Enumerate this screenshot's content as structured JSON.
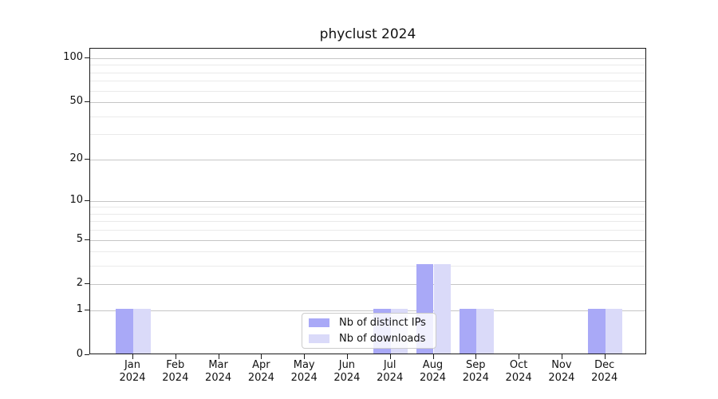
{
  "title": "phyclust 2024",
  "chart_data": {
    "type": "bar",
    "title": "phyclust 2024",
    "categories": [
      "Jan 2024",
      "Feb 2024",
      "Mar 2024",
      "Apr 2024",
      "May 2024",
      "Jun 2024",
      "Jul 2024",
      "Aug 2024",
      "Sep 2024",
      "Oct 2024",
      "Nov 2024",
      "Dec 2024"
    ],
    "x_tick_months": [
      "Jan",
      "Feb",
      "Mar",
      "Apr",
      "May",
      "Jun",
      "Jul",
      "Aug",
      "Sep",
      "Oct",
      "Nov",
      "Dec"
    ],
    "x_tick_year": "2024",
    "series": [
      {
        "name": "Nb of distinct IPs",
        "color": "#a9a9f7",
        "values": [
          1,
          0,
          0,
          0,
          0,
          0,
          1,
          3,
          1,
          0,
          0,
          1
        ]
      },
      {
        "name": "Nb of downloads",
        "color": "#dadaf9",
        "values": [
          1,
          0,
          0,
          0,
          0,
          0,
          1,
          3,
          1,
          0,
          0,
          1
        ]
      }
    ],
    "y_axis": {
      "scale": "log10(1+v)",
      "tick_values": [
        0,
        1,
        2,
        5,
        10,
        20,
        50,
        100
      ],
      "minor_grid_values": [
        3,
        4,
        6,
        7,
        8,
        9,
        30,
        40,
        60,
        70,
        80,
        90
      ],
      "ylim": [
        0,
        115
      ]
    },
    "legend": {
      "position": "lower center",
      "entries": [
        "Nb of distinct IPs",
        "Nb of downloads"
      ]
    },
    "grid": {
      "major_color": "#c6c6c6",
      "minor_color": "#eaeaea"
    },
    "frame_color": "#1a1a1a",
    "background_color": "#ffffff"
  }
}
